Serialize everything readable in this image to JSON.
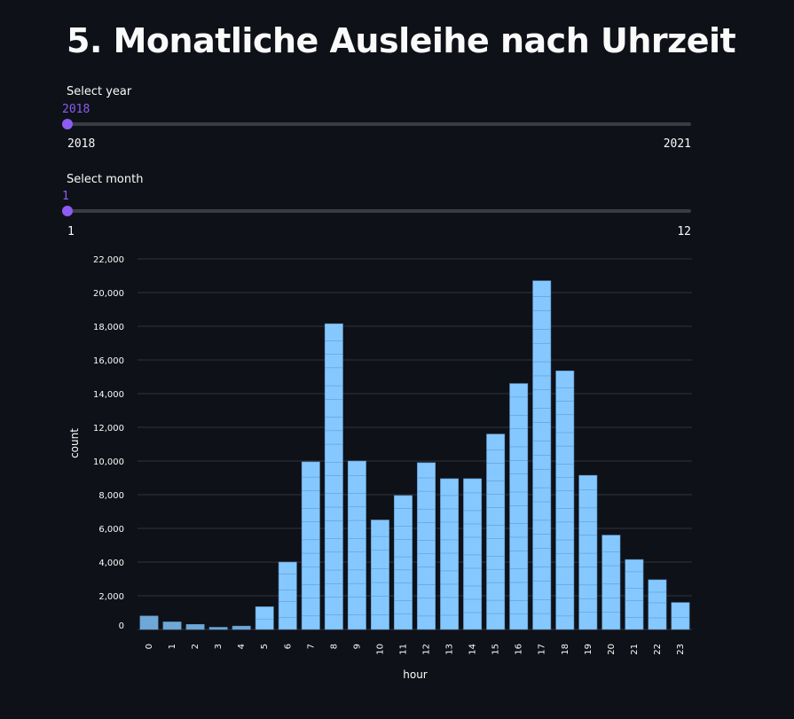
{
  "title": "5. Monatliche Ausleihe nach Uhrzeit",
  "year_slider": {
    "label": "Select year",
    "value": "2018",
    "min": "2018",
    "max": "2021",
    "position": 0
  },
  "month_slider": {
    "label": "Select month",
    "value": "1",
    "min": "1",
    "max": "12",
    "position": 0
  },
  "colors": {
    "accent": "#8c5cf3",
    "bar": "#85c8ff",
    "bar_dim": "#6fa8d6",
    "background": "#0e1117"
  },
  "chart_data": {
    "type": "bar",
    "xlabel": "hour",
    "ylabel": "count",
    "ylim": [
      0,
      22000
    ],
    "yticks": [
      0,
      2000,
      4000,
      6000,
      8000,
      10000,
      12000,
      14000,
      16000,
      18000,
      20000,
      22000
    ],
    "ytick_labels": [
      "0",
      "2,000",
      "4,000",
      "6,000",
      "8,000",
      "10,000",
      "12,000",
      "14,000",
      "16,000",
      "18,000",
      "20,000",
      "22,000"
    ],
    "categories": [
      "0",
      "1",
      "2",
      "3",
      "4",
      "5",
      "6",
      "7",
      "8",
      "9",
      "10",
      "11",
      "12",
      "13",
      "14",
      "15",
      "16",
      "17",
      "18",
      "19",
      "20",
      "21",
      "22",
      "23"
    ],
    "values": [
      800,
      450,
      300,
      130,
      200,
      1350,
      4000,
      9950,
      18150,
      10000,
      6500,
      7950,
      9900,
      8950,
      8950,
      11600,
      14600,
      20700,
      15350,
      9150,
      5600,
      4150,
      2950,
      1600
    ],
    "grid": true
  }
}
